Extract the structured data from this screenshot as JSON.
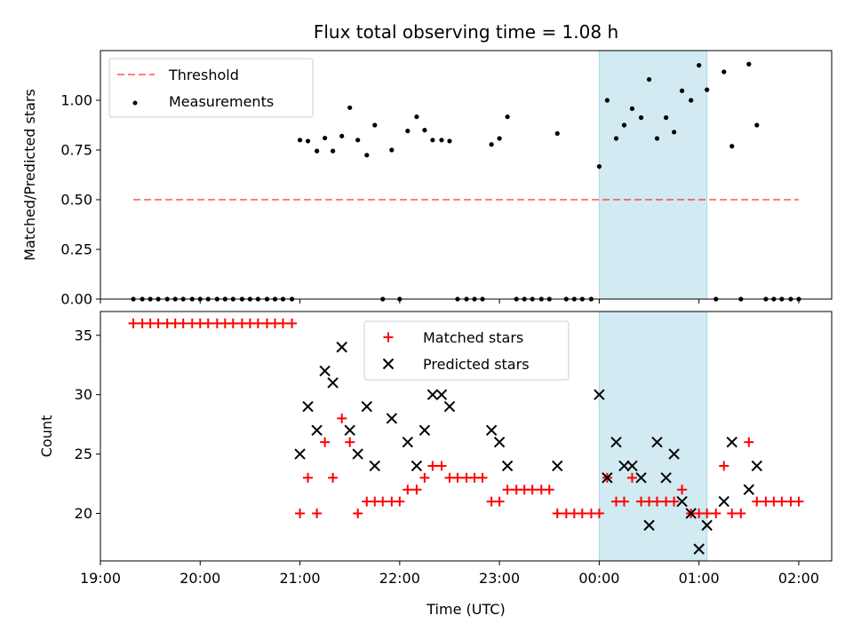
{
  "chart_data": [
    {
      "type": "scatter",
      "panel": "top",
      "title": "Flux total observing time = 1.08 h",
      "ylabel": "Matched/Predicted stars",
      "ylim": [
        0,
        1.25
      ],
      "yticks": [
        "0.00",
        "0.25",
        "0.50",
        "0.75",
        "1.00"
      ],
      "yticks_values": [
        0,
        0.25,
        0.5,
        0.75,
        1.0
      ],
      "xlim_hours": [
        -5,
        2.33
      ],
      "shaded_region_hours": [
        0,
        1.08
      ],
      "shaded_color": "#add8e6",
      "threshold": {
        "name": "Threshold",
        "value": 0.5,
        "x_range_hours": [
          -4.67,
          2.0
        ],
        "color": "#ff0000"
      },
      "legend": {
        "placement": "top-left",
        "entries": [
          "Threshold",
          "Measurements"
        ]
      },
      "series": [
        {
          "name": "Measurements",
          "color": "#000000",
          "points": [
            [
              -4.67,
              0
            ],
            [
              -4.58,
              0
            ],
            [
              -4.5,
              0
            ],
            [
              -4.42,
              0
            ],
            [
              -4.33,
              0
            ],
            [
              -4.25,
              0
            ],
            [
              -4.17,
              0
            ],
            [
              -4.08,
              0
            ],
            [
              -4.0,
              0
            ],
            [
              -3.92,
              0
            ],
            [
              -3.83,
              0
            ],
            [
              -3.75,
              0
            ],
            [
              -3.67,
              0
            ],
            [
              -3.58,
              0
            ],
            [
              -3.5,
              0
            ],
            [
              -3.42,
              0
            ],
            [
              -3.33,
              0
            ],
            [
              -3.25,
              0
            ],
            [
              -3.17,
              0
            ],
            [
              -3.08,
              0
            ],
            [
              -3.0,
              0.8
            ],
            [
              -2.92,
              0.795
            ],
            [
              -2.83,
              0.745
            ],
            [
              -2.75,
              0.81
            ],
            [
              -2.67,
              0.745
            ],
            [
              -2.58,
              0.82
            ],
            [
              -2.5,
              0.963
            ],
            [
              -2.42,
              0.8
            ],
            [
              -2.33,
              0.724
            ],
            [
              -2.25,
              0.875
            ],
            [
              -2.17,
              0
            ],
            [
              -2.08,
              0.75
            ],
            [
              -2.0,
              0
            ],
            [
              -1.92,
              0.846
            ],
            [
              -1.83,
              0.917
            ],
            [
              -1.75,
              0.85
            ],
            [
              -1.67,
              0.8
            ],
            [
              -1.58,
              0.8
            ],
            [
              -1.5,
              0.795
            ],
            [
              -1.42,
              0
            ],
            [
              -1.33,
              0
            ],
            [
              -1.25,
              0
            ],
            [
              -1.17,
              0
            ],
            [
              -1.08,
              0.778
            ],
            [
              -1.0,
              0.808
            ],
            [
              -0.92,
              0.917
            ],
            [
              -0.83,
              0
            ],
            [
              -0.75,
              0
            ],
            [
              -0.67,
              0
            ],
            [
              -0.58,
              0
            ],
            [
              -0.5,
              0
            ],
            [
              -0.42,
              0.833
            ],
            [
              -0.33,
              0
            ],
            [
              -0.25,
              0
            ],
            [
              -0.17,
              0
            ],
            [
              -0.08,
              0
            ],
            [
              0.0,
              0.667
            ],
            [
              0.08,
              1.0
            ],
            [
              0.17,
              0.808
            ],
            [
              0.25,
              0.875
            ],
            [
              0.33,
              0.958
            ],
            [
              0.42,
              0.913
            ],
            [
              0.5,
              1.105
            ],
            [
              0.58,
              0.808
            ],
            [
              0.67,
              0.913
            ],
            [
              0.75,
              0.84
            ],
            [
              0.83,
              1.048
            ],
            [
              0.92,
              1.0
            ],
            [
              1.0,
              1.176
            ],
            [
              1.08,
              1.053
            ],
            [
              1.17,
              0
            ],
            [
              1.25,
              1.143
            ],
            [
              1.33,
              0.769
            ],
            [
              1.42,
              0
            ],
            [
              1.5,
              1.182
            ],
            [
              1.58,
              0.875
            ],
            [
              1.67,
              0
            ],
            [
              1.75,
              0
            ],
            [
              1.83,
              0
            ],
            [
              1.92,
              0
            ],
            [
              2.0,
              0
            ]
          ]
        }
      ]
    },
    {
      "type": "scatter",
      "panel": "bottom",
      "ylabel": "Count",
      "xlabel": "Time (UTC)",
      "ylim": [
        16,
        37
      ],
      "yticks": [
        "20",
        "25",
        "30",
        "35"
      ],
      "yticks_values": [
        20,
        25,
        30,
        35
      ],
      "xlim_hours": [
        -5,
        2.33
      ],
      "xticks": [
        "19:00",
        "20:00",
        "21:00",
        "22:00",
        "23:00",
        "00:00",
        "01:00",
        "02:00"
      ],
      "xticks_hours": [
        -5,
        -4,
        -3,
        -2,
        -1,
        0,
        1,
        2
      ],
      "shaded_region_hours": [
        0,
        1.08
      ],
      "shaded_color": "#add8e6",
      "legend": {
        "placement": "top-center",
        "entries": [
          "Matched stars",
          "Predicted stars"
        ]
      },
      "series": [
        {
          "name": "Matched stars",
          "marker": "plus",
          "color": "#ff0000",
          "points": [
            [
              -4.67,
              36
            ],
            [
              -4.58,
              36
            ],
            [
              -4.5,
              36
            ],
            [
              -4.42,
              36
            ],
            [
              -4.33,
              36
            ],
            [
              -4.25,
              36
            ],
            [
              -4.17,
              36
            ],
            [
              -4.08,
              36
            ],
            [
              -4.0,
              36
            ],
            [
              -3.92,
              36
            ],
            [
              -3.83,
              36
            ],
            [
              -3.75,
              36
            ],
            [
              -3.67,
              36
            ],
            [
              -3.58,
              36
            ],
            [
              -3.5,
              36
            ],
            [
              -3.42,
              36
            ],
            [
              -3.33,
              36
            ],
            [
              -3.25,
              36
            ],
            [
              -3.17,
              36
            ],
            [
              -3.08,
              36
            ],
            [
              -3.0,
              20
            ],
            [
              -2.92,
              23
            ],
            [
              -2.83,
              20
            ],
            [
              -2.75,
              26
            ],
            [
              -2.67,
              23
            ],
            [
              -2.58,
              28
            ],
            [
              -2.5,
              26
            ],
            [
              -2.42,
              20
            ],
            [
              -2.33,
              21
            ],
            [
              -2.25,
              21
            ],
            [
              -2.17,
              21
            ],
            [
              -2.08,
              21
            ],
            [
              -2.0,
              21
            ],
            [
              -1.92,
              22
            ],
            [
              -1.83,
              22
            ],
            [
              -1.75,
              23
            ],
            [
              -1.67,
              24
            ],
            [
              -1.58,
              24
            ],
            [
              -1.5,
              23
            ],
            [
              -1.42,
              23
            ],
            [
              -1.33,
              23
            ],
            [
              -1.25,
              23
            ],
            [
              -1.17,
              23
            ],
            [
              -1.08,
              21
            ],
            [
              -1.0,
              21
            ],
            [
              -0.92,
              22
            ],
            [
              -0.83,
              22
            ],
            [
              -0.75,
              22
            ],
            [
              -0.67,
              22
            ],
            [
              -0.58,
              22
            ],
            [
              -0.5,
              22
            ],
            [
              -0.42,
              20
            ],
            [
              -0.33,
              20
            ],
            [
              -0.25,
              20
            ],
            [
              -0.17,
              20
            ],
            [
              -0.08,
              20
            ],
            [
              0.0,
              20
            ],
            [
              0.08,
              23
            ],
            [
              0.17,
              21
            ],
            [
              0.25,
              21
            ],
            [
              0.33,
              23
            ],
            [
              0.42,
              21
            ],
            [
              0.5,
              21
            ],
            [
              0.58,
              21
            ],
            [
              0.67,
              21
            ],
            [
              0.75,
              21
            ],
            [
              0.83,
              22
            ],
            [
              0.92,
              20
            ],
            [
              1.0,
              20
            ],
            [
              1.08,
              20
            ],
            [
              1.17,
              20
            ],
            [
              1.25,
              24
            ],
            [
              1.33,
              20
            ],
            [
              1.42,
              20
            ],
            [
              1.5,
              26
            ],
            [
              1.58,
              21
            ],
            [
              1.67,
              21
            ],
            [
              1.75,
              21
            ],
            [
              1.83,
              21
            ],
            [
              1.92,
              21
            ],
            [
              2.0,
              21
            ]
          ]
        },
        {
          "name": "Predicted stars",
          "marker": "x",
          "color": "#000000",
          "points": [
            [
              -3.0,
              25
            ],
            [
              -2.92,
              29
            ],
            [
              -2.83,
              27
            ],
            [
              -2.75,
              32
            ],
            [
              -2.67,
              31
            ],
            [
              -2.58,
              34
            ],
            [
              -2.5,
              27
            ],
            [
              -2.42,
              25
            ],
            [
              -2.33,
              29
            ],
            [
              -2.25,
              24
            ],
            [
              -2.08,
              28
            ],
            [
              -1.92,
              26
            ],
            [
              -1.83,
              24
            ],
            [
              -1.75,
              27
            ],
            [
              -1.67,
              30
            ],
            [
              -1.58,
              30
            ],
            [
              -1.5,
              29
            ],
            [
              -1.08,
              27
            ],
            [
              -1.0,
              26
            ],
            [
              -0.92,
              24
            ],
            [
              -0.42,
              24
            ],
            [
              0.0,
              30
            ],
            [
              0.08,
              23
            ],
            [
              0.17,
              26
            ],
            [
              0.25,
              24
            ],
            [
              0.33,
              24
            ],
            [
              0.42,
              23
            ],
            [
              0.5,
              19
            ],
            [
              0.58,
              26
            ],
            [
              0.67,
              23
            ],
            [
              0.75,
              25
            ],
            [
              0.83,
              21
            ],
            [
              0.92,
              20
            ],
            [
              1.0,
              17
            ],
            [
              1.08,
              19
            ],
            [
              1.25,
              21
            ],
            [
              1.33,
              26
            ],
            [
              1.5,
              22
            ],
            [
              1.58,
              24
            ]
          ]
        }
      ]
    }
  ]
}
